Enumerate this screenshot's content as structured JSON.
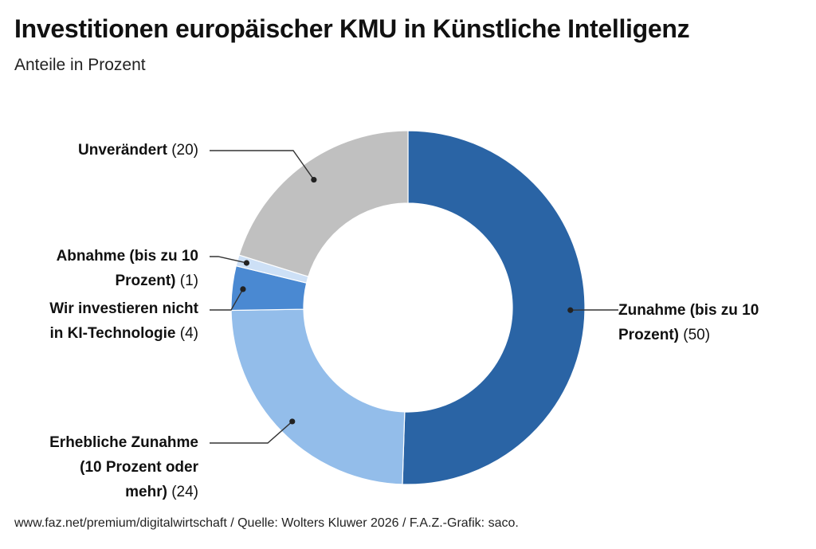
{
  "title": "Investitionen europäischer KMU in Künstliche Intelligenz",
  "subtitle": "Anteile in Prozent",
  "footer": "www.faz.net/premium/digitalwirtschaft / Quelle: Wolters Kluwer 2026 / F.A.Z.-Grafik: saco.",
  "chart_data": {
    "type": "pie",
    "variant": "donut",
    "title": "Investitionen europäischer KMU in Künstliche Intelligenz",
    "subtitle": "Anteile in Prozent",
    "unit": "Prozent",
    "slices": [
      {
        "label_lines": [
          "Zunahme (bis zu 10",
          "Prozent)"
        ],
        "value": 50,
        "value_text": "(50)",
        "color": "#2a64a5"
      },
      {
        "label_lines": [
          "Erhebliche Zunahme",
          "(10 Prozent oder",
          "mehr)"
        ],
        "value": 24,
        "value_text": "(24)",
        "color": "#93bdea"
      },
      {
        "label_lines": [
          "Wir investieren nicht",
          "in KI-Technologie"
        ],
        "value": 4,
        "value_text": "(4)",
        "color": "#4a89d2"
      },
      {
        "label_lines": [
          "Abnahme (bis zu 10",
          "Prozent)"
        ],
        "value": 1,
        "value_text": "(1)",
        "color": "#cde0f6"
      },
      {
        "label_lines": [
          "Unverändert"
        ],
        "value": 20,
        "value_text": "(20)",
        "color": "#c0c0c0"
      }
    ]
  }
}
